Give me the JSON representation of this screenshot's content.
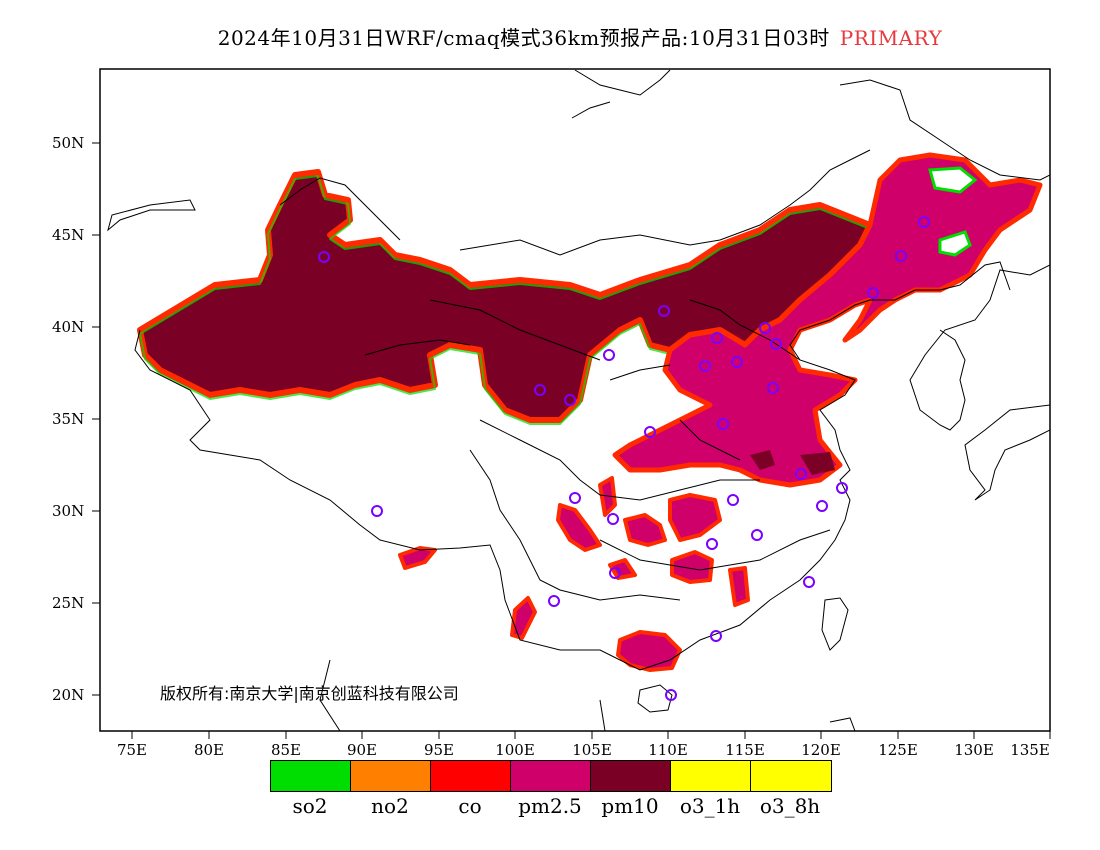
{
  "title": {
    "main": "2024年10月31日WRF/cmaq模式36km预报产品:10月31日03时",
    "tag": "PRIMARY",
    "tag_color": "#e8383f"
  },
  "map": {
    "lat_labels": [
      "50N",
      "45N",
      "40N",
      "35N",
      "30N",
      "25N",
      "20N"
    ],
    "lon_labels": [
      "75E",
      "80E",
      "85E",
      "90E",
      "95E",
      "100E",
      "105E",
      "110E",
      "115E",
      "120E",
      "125E",
      "130E",
      "135E"
    ],
    "copyright": "版权所有:南京大学|南京创蓝科技有限公司"
  },
  "legend": {
    "items": [
      {
        "label": "so2",
        "color": "#00dd00"
      },
      {
        "label": "no2",
        "color": "#ff8000"
      },
      {
        "label": "co",
        "color": "#ff0000"
      },
      {
        "label": "pm2.5",
        "color": "#d0006a"
      },
      {
        "label": "pm10",
        "color": "#7a0025"
      },
      {
        "label": "o3_1h",
        "color": "#ffff00"
      },
      {
        "label": "o3_8h",
        "color": "#ffff00"
      }
    ]
  }
}
